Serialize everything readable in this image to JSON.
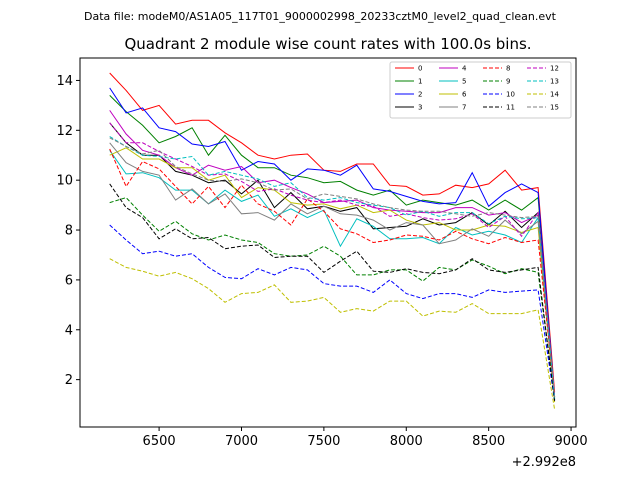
{
  "chart_data": {
    "type": "line",
    "suptitle": "Data file: modeM0/AS1A05_117T01_9000002998_20233cztM0_level2_quad_clean.evt",
    "title": "Quadrant 2 module wise count rates with 100.0s bins.",
    "xlabel": "",
    "ylabel": "",
    "offset_label": "+2.992e8",
    "xlim": [
      6020,
      9030
    ],
    "ylim": [
      0.1,
      14.9
    ],
    "x_ticks": [
      6500,
      7000,
      7500,
      8000,
      8500,
      9000
    ],
    "y_ticks": [
      2,
      4,
      6,
      8,
      10,
      12,
      14
    ],
    "legend_position": "top-right",
    "x": [
      6200,
      6300,
      6400,
      6500,
      6600,
      6700,
      6800,
      6900,
      7000,
      7100,
      7200,
      7300,
      7400,
      7500,
      7600,
      7700,
      7800,
      7900,
      8000,
      8100,
      8200,
      8300,
      8400,
      8500,
      8600,
      8700,
      8800,
      8900
    ],
    "series": [
      {
        "name": "0",
        "color": "#ff0000",
        "dash": "solid",
        "values": [
          14.3,
          13.6,
          12.8,
          13.0,
          12.25,
          12.4,
          12.4,
          11.9,
          11.5,
          11.0,
          10.85,
          11.0,
          11.05,
          10.4,
          10.35,
          10.65,
          10.65,
          9.8,
          9.75,
          9.4,
          9.45,
          9.8,
          9.7,
          9.85,
          10.4,
          9.6,
          9.7,
          1.5
        ]
      },
      {
        "name": "1",
        "color": "#008000",
        "dash": "solid",
        "values": [
          13.4,
          12.75,
          12.2,
          11.5,
          11.75,
          12.1,
          11.0,
          11.8,
          11.0,
          10.5,
          10.5,
          10.2,
          10.1,
          9.9,
          9.95,
          9.6,
          9.4,
          9.6,
          9.0,
          9.2,
          9.1,
          9.0,
          9.2,
          8.8,
          9.2,
          8.8,
          9.3,
          1.3
        ]
      },
      {
        "name": "2",
        "color": "#0000ff",
        "dash": "solid",
        "values": [
          13.7,
          12.7,
          12.9,
          12.1,
          11.95,
          11.45,
          11.35,
          11.55,
          10.4,
          10.75,
          10.65,
          10.0,
          10.45,
          10.4,
          10.2,
          10.6,
          9.65,
          9.55,
          9.35,
          9.15,
          9.05,
          9.1,
          10.3,
          8.95,
          9.5,
          9.85,
          9.5,
          1.25
        ]
      },
      {
        "name": "3",
        "color": "#000000",
        "dash": "solid",
        "values": [
          12.3,
          11.5,
          11.0,
          11.0,
          10.35,
          10.2,
          9.9,
          10.0,
          9.45,
          10.0,
          8.9,
          9.5,
          8.85,
          8.95,
          8.75,
          8.9,
          8.05,
          8.1,
          8.15,
          8.45,
          8.2,
          8.3,
          8.7,
          8.2,
          8.75,
          8.1,
          8.7,
          1.2
        ]
      },
      {
        "name": "4",
        "color": "#bf00bf",
        "dash": "solid",
        "values": [
          12.8,
          11.85,
          11.2,
          11.0,
          10.5,
          10.2,
          10.6,
          10.4,
          10.55,
          9.9,
          10.0,
          9.7,
          9.45,
          9.1,
          9.15,
          9.2,
          8.9,
          8.8,
          8.75,
          8.7,
          8.7,
          8.9,
          8.9,
          8.6,
          8.7,
          8.3,
          8.6,
          1.3
        ]
      },
      {
        "name": "5",
        "color": "#00bfbf",
        "dash": "solid",
        "values": [
          11.2,
          10.25,
          10.3,
          10.1,
          9.6,
          9.6,
          9.05,
          9.6,
          9.15,
          9.4,
          8.55,
          8.85,
          8.5,
          8.8,
          7.35,
          8.45,
          8.15,
          7.65,
          7.65,
          7.7,
          7.45,
          8.1,
          7.8,
          7.95,
          7.8,
          7.5,
          8.5,
          1.2
        ]
      },
      {
        "name": "6",
        "color": "#bfbf00",
        "dash": "solid",
        "values": [
          11.0,
          11.3,
          10.85,
          10.85,
          10.5,
          10.5,
          10.0,
          10.2,
          9.3,
          9.7,
          9.6,
          9.1,
          9.0,
          9.05,
          8.85,
          9.0,
          8.7,
          8.8,
          8.4,
          8.2,
          8.3,
          8.0,
          8.0,
          8.2,
          8.15,
          7.9,
          8.1,
          1.1
        ]
      },
      {
        "name": "7",
        "color": "#808080",
        "dash": "solid",
        "values": [
          11.5,
          10.7,
          10.35,
          10.2,
          9.2,
          9.65,
          9.05,
          9.45,
          8.65,
          8.7,
          8.4,
          9.05,
          8.65,
          8.95,
          8.65,
          8.6,
          8.4,
          8.0,
          8.3,
          8.2,
          7.45,
          7.6,
          8.05,
          7.75,
          8.4,
          7.85,
          8.35,
          1.2
        ]
      },
      {
        "name": "8",
        "color": "#ff0000",
        "dash": "dashed",
        "values": [
          11.25,
          9.75,
          10.75,
          10.45,
          9.75,
          9.05,
          9.75,
          8.9,
          9.8,
          9.05,
          8.75,
          8.2,
          9.25,
          8.75,
          8.05,
          7.85,
          7.5,
          7.6,
          7.8,
          7.75,
          7.6,
          7.95,
          7.65,
          7.45,
          7.7,
          7.5,
          7.6,
          1.4
        ]
      },
      {
        "name": "9",
        "color": "#008000",
        "dash": "dashed",
        "values": [
          9.1,
          9.3,
          8.6,
          7.95,
          8.35,
          7.85,
          7.6,
          7.8,
          7.6,
          7.5,
          7.05,
          6.95,
          7.0,
          7.35,
          6.95,
          6.2,
          6.2,
          6.4,
          6.4,
          5.95,
          6.5,
          6.4,
          6.8,
          6.55,
          6.25,
          6.45,
          6.3,
          1.2
        ]
      },
      {
        "name": "10",
        "color": "#0000ff",
        "dash": "dashed",
        "values": [
          8.2,
          7.6,
          7.05,
          7.15,
          6.95,
          7.05,
          6.5,
          6.1,
          6.05,
          6.45,
          6.2,
          6.5,
          6.4,
          5.85,
          5.75,
          5.75,
          5.5,
          6.0,
          5.45,
          5.25,
          5.45,
          5.45,
          5.3,
          5.6,
          5.5,
          5.55,
          5.6,
          1.15
        ]
      },
      {
        "name": "11",
        "color": "#000000",
        "dash": "dashed",
        "values": [
          9.85,
          8.9,
          8.5,
          7.65,
          8.05,
          7.65,
          7.7,
          7.25,
          7.35,
          7.4,
          6.9,
          6.95,
          6.95,
          6.3,
          6.75,
          7.15,
          6.35,
          6.3,
          6.45,
          6.3,
          6.25,
          6.4,
          6.85,
          6.4,
          6.3,
          6.4,
          6.5,
          1.15
        ]
      },
      {
        "name": "12",
        "color": "#bf00bf",
        "dash": "dashed",
        "values": [
          12.3,
          11.5,
          11.5,
          11.15,
          10.85,
          10.55,
          10.2,
          10.25,
          9.95,
          9.55,
          9.65,
          9.4,
          9.2,
          9.1,
          9.2,
          9.0,
          8.95,
          8.55,
          8.65,
          8.5,
          8.4,
          8.45,
          8.65,
          8.1,
          8.55,
          7.75,
          8.7,
          1.35
        ]
      },
      {
        "name": "13",
        "color": "#00bfbf",
        "dash": "dashed",
        "values": [
          11.75,
          11.35,
          11.0,
          10.95,
          10.85,
          10.95,
          10.2,
          10.35,
          10.2,
          10.05,
          9.75,
          9.9,
          9.3,
          9.2,
          9.3,
          9.1,
          9.0,
          8.9,
          8.6,
          8.75,
          8.55,
          8.7,
          8.7,
          8.25,
          8.55,
          8.45,
          8.5,
          1.25
        ]
      },
      {
        "name": "14",
        "color": "#bfbf00",
        "dash": "dashed",
        "values": [
          6.85,
          6.5,
          6.35,
          6.15,
          6.3,
          6.05,
          5.65,
          5.1,
          5.45,
          5.5,
          5.8,
          5.1,
          5.15,
          5.3,
          4.7,
          4.85,
          4.75,
          5.15,
          5.15,
          4.55,
          4.75,
          4.7,
          5.05,
          4.65,
          4.65,
          4.65,
          4.8,
          0.8
        ]
      },
      {
        "name": "15",
        "color": "#808080",
        "dash": "dashed",
        "values": [
          11.7,
          11.35,
          11.05,
          11.2,
          10.55,
          10.25,
          10.0,
          9.95,
          10.05,
          9.9,
          9.6,
          9.65,
          9.25,
          9.45,
          9.35,
          9.25,
          9.05,
          8.9,
          8.8,
          8.75,
          8.75,
          8.65,
          8.55,
          8.7,
          8.6,
          8.5,
          8.55,
          1.3
        ]
      }
    ]
  }
}
